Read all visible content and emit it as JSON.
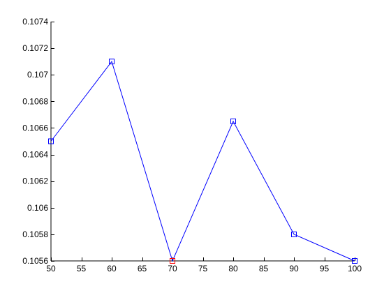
{
  "chart_data": {
    "type": "line",
    "x": [
      50,
      60,
      70,
      80,
      90,
      100
    ],
    "series": [
      {
        "values": [
          0.1065,
          0.1071,
          0.1056,
          0.10665,
          0.1058,
          0.1056
        ],
        "color": "#0000ff",
        "marker": "square"
      }
    ],
    "highlight": {
      "x": 70,
      "y": 0.1056,
      "color": "#ff0000"
    },
    "xlim": [
      50,
      100
    ],
    "ylim": [
      0.1056,
      0.1074
    ],
    "xticks": [
      50,
      55,
      60,
      65,
      70,
      75,
      80,
      85,
      90,
      95,
      100
    ],
    "xtick_labels": [
      "50",
      "55",
      "60",
      "65",
      "70",
      "75",
      "80",
      "85",
      "90",
      "95",
      "100"
    ],
    "yticks": [
      0.1056,
      0.1058,
      0.106,
      0.1062,
      0.1064,
      0.1066,
      0.1068,
      0.107,
      0.1072,
      0.1074
    ],
    "ytick_labels": [
      "0.1056",
      "0.1058",
      "0.106",
      "0.1062",
      "0.1064",
      "0.1066",
      "0.1068",
      "0.107",
      "0.1072",
      "0.1074"
    ],
    "grid": false,
    "title": "",
    "xlabel": "",
    "ylabel": "",
    "axis_color": "#000000"
  }
}
